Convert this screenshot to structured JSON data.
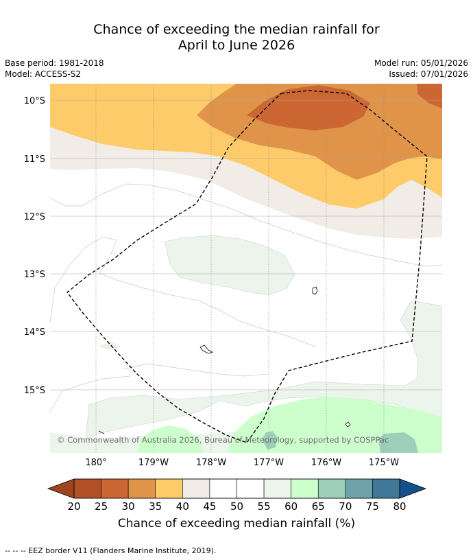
{
  "title": {
    "line1": "Chance of exceeding the median rainfall for",
    "line2": "April to June 2026"
  },
  "meta": {
    "base_period": "Base period: 1981-2018",
    "model": "Model: ACCESS-S2",
    "model_run": "Model run: 05/01/2026",
    "issued": "Issued: 07/01/2026"
  },
  "map": {
    "lat_labels": [
      "10°S",
      "11°S",
      "12°S",
      "13°S",
      "14°S",
      "15°S"
    ],
    "lon_labels": [
      "180°",
      "179°W",
      "178°W",
      "177°W",
      "176°W",
      "175°W"
    ],
    "copyright": "© Commonwealth of Australia 2026, Bureau of Meteorology, supported by COSPPac",
    "eez_border_legend": "-- -- -- EEZ border V11 (Flanders Marine Institute, 2019)."
  },
  "colorbar": {
    "ticks": [
      "20",
      "25",
      "30",
      "35",
      "40",
      "45",
      "50",
      "55",
      "60",
      "65",
      "70",
      "75",
      "80"
    ],
    "colors": [
      "#b2502a",
      "#cc6633",
      "#e0944a",
      "#fecb6a",
      "#f1ece6",
      "#ffffff",
      "#ffffff",
      "#ebf5eb",
      "#ccffcc",
      "#9dcfb9",
      "#6ea3a9",
      "#3f7898"
    ],
    "under_color": "#a0431f",
    "over_color": "#14508a",
    "label": "Chance of exceeding median rainfall (%)"
  }
}
